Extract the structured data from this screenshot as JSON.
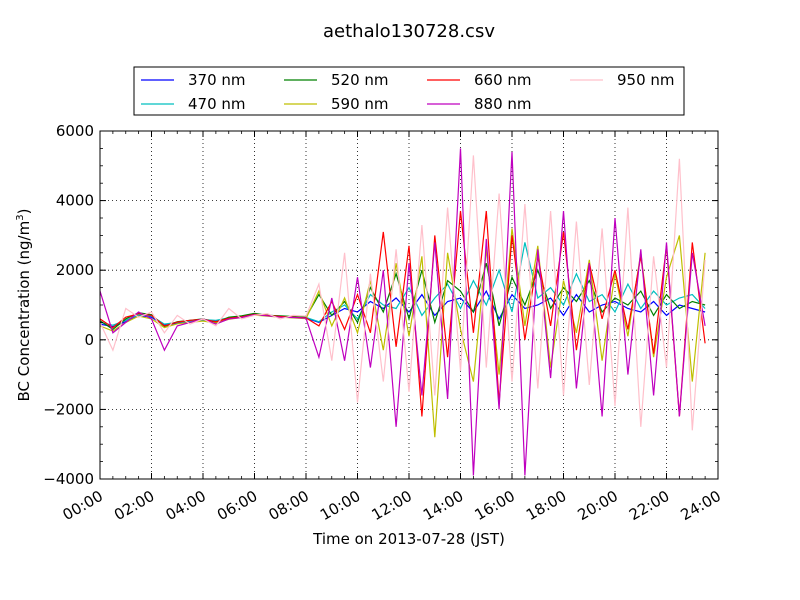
{
  "chart_data": {
    "type": "line",
    "title": "aethalo130728.csv",
    "xlabel": "Time on 2013-07-28 (JST)",
    "ylabel": "BC Concentration (ng/m",
    "ylabel_sup": "3",
    "ylabel_close": ")",
    "xlim": [
      "00:00",
      "24:00"
    ],
    "ylim": [
      -4000,
      6000
    ],
    "xticks": [
      "00:00",
      "02:00",
      "04:00",
      "06:00",
      "08:00",
      "10:00",
      "12:00",
      "14:00",
      "16:00",
      "18:00",
      "20:00",
      "22:00",
      "24:00"
    ],
    "yticks": [
      -4000,
      -2000,
      0,
      2000,
      4000,
      6000
    ],
    "ytick_labels": [
      "−4000",
      "−2000",
      "0",
      "2000",
      "4000",
      "6000"
    ],
    "grid": true,
    "legend_position": "top-center",
    "series": [
      {
        "name": "370 nm",
        "color": "#0000ff",
        "x": [
          "00:00",
          "00:30",
          "01:00",
          "01:30",
          "02:00",
          "02:30",
          "03:00",
          "03:30",
          "04:00",
          "04:30",
          "05:00",
          "05:30",
          "06:00",
          "06:30",
          "07:00",
          "07:30",
          "08:00",
          "08:30",
          "09:00",
          "09:30",
          "10:00",
          "10:30",
          "11:00",
          "11:30",
          "12:00",
          "12:30",
          "13:00",
          "13:30",
          "14:00",
          "14:30",
          "15:00",
          "15:30",
          "16:00",
          "16:30",
          "17:00",
          "17:30",
          "18:00",
          "18:30",
          "19:00",
          "19:30",
          "20:00",
          "20:30",
          "21:00",
          "21:30",
          "22:00",
          "22:30",
          "23:00",
          "23:30"
        ],
        "values": [
          450,
          380,
          520,
          700,
          650,
          420,
          480,
          520,
          560,
          540,
          610,
          650,
          720,
          690,
          660,
          640,
          620,
          500,
          700,
          900,
          800,
          1100,
          900,
          1200,
          800,
          1300,
          700,
          1100,
          1200,
          800,
          1400,
          600,
          1300,
          900,
          1000,
          1200,
          700,
          1300,
          800,
          1000,
          1100,
          900,
          800,
          1100,
          700,
          1000,
          900,
          800
        ]
      },
      {
        "name": "470 nm",
        "color": "#00bfbf",
        "x": [
          "00:00",
          "00:30",
          "01:00",
          "01:30",
          "02:00",
          "02:30",
          "03:00",
          "03:30",
          "04:00",
          "04:30",
          "05:00",
          "05:30",
          "06:00",
          "06:30",
          "07:00",
          "07:30",
          "08:00",
          "08:30",
          "09:00",
          "09:30",
          "10:00",
          "10:30",
          "11:00",
          "11:30",
          "12:00",
          "12:30",
          "13:00",
          "13:30",
          "14:00",
          "14:30",
          "15:00",
          "15:30",
          "16:00",
          "16:30",
          "17:00",
          "17:30",
          "18:00",
          "18:30",
          "19:00",
          "19:30",
          "20:00",
          "20:30",
          "21:00",
          "21:30",
          "22:00",
          "22:30",
          "23:00",
          "23:30"
        ],
        "values": [
          500,
          420,
          560,
          720,
          680,
          450,
          500,
          540,
          580,
          560,
          630,
          670,
          740,
          710,
          680,
          660,
          640,
          520,
          800,
          1000,
          600,
          1300,
          1000,
          900,
          1500,
          700,
          1200,
          1600,
          900,
          1700,
          1000,
          2000,
          800,
          2800,
          1200,
          1500,
          1000,
          1900,
          1100,
          1300,
          800,
          1600,
          900,
          1400,
          1000,
          1200,
          1300,
          900
        ]
      },
      {
        "name": "520 nm",
        "color": "#008000",
        "x": [
          "00:00",
          "00:30",
          "01:00",
          "01:30",
          "02:00",
          "02:30",
          "03:00",
          "03:30",
          "04:00",
          "04:30",
          "05:00",
          "05:30",
          "06:00",
          "06:30",
          "07:00",
          "07:30",
          "08:00",
          "08:30",
          "09:00",
          "09:30",
          "10:00",
          "10:30",
          "11:00",
          "11:30",
          "12:00",
          "12:30",
          "13:00",
          "13:30",
          "14:00",
          "14:30",
          "15:00",
          "15:30",
          "16:00",
          "16:30",
          "17:00",
          "17:30",
          "18:00",
          "18:30",
          "19:00",
          "19:30",
          "20:00",
          "20:30",
          "21:00",
          "21:30",
          "22:00",
          "22:30",
          "23:00",
          "23:30"
        ],
        "values": [
          550,
          300,
          600,
          780,
          720,
          380,
          520,
          560,
          600,
          500,
          650,
          690,
          760,
          700,
          690,
          670,
          650,
          1300,
          700,
          1100,
          500,
          1500,
          800,
          1900,
          600,
          2000,
          500,
          1700,
          1400,
          800,
          2200,
          400,
          1800,
          1000,
          2000,
          900,
          1500,
          1100,
          1700,
          800,
          1200,
          1000,
          1400,
          700,
          1300,
          900,
          1100,
          1000
        ]
      },
      {
        "name": "590 nm",
        "color": "#bfbf00",
        "x": [
          "00:00",
          "00:30",
          "01:00",
          "01:30",
          "02:00",
          "02:30",
          "03:00",
          "03:30",
          "04:00",
          "04:30",
          "05:00",
          "05:30",
          "06:00",
          "06:30",
          "07:00",
          "07:30",
          "08:00",
          "08:30",
          "09:00",
          "09:30",
          "10:00",
          "10:30",
          "11:00",
          "11:30",
          "12:00",
          "12:30",
          "13:00",
          "13:30",
          "14:00",
          "14:30",
          "15:00",
          "15:30",
          "16:00",
          "16:30",
          "17:00",
          "17:30",
          "18:00",
          "18:30",
          "19:00",
          "19:30",
          "20:00",
          "20:30",
          "21:00",
          "21:30",
          "22:00",
          "22:30",
          "23:00",
          "23:30"
        ],
        "values": [
          400,
          250,
          500,
          680,
          600,
          350,
          460,
          500,
          540,
          480,
          590,
          640,
          710,
          680,
          650,
          630,
          610,
          1400,
          400,
          1200,
          200,
          1700,
          -300,
          2200,
          100,
          2400,
          -2800,
          2500,
          300,
          -1200,
          2600,
          -1000,
          3200,
          400,
          2700,
          -800,
          1700,
          200,
          2300,
          -600,
          1900,
          100,
          2500,
          -500,
          1800,
          3000,
          -1200,
          2500
        ]
      },
      {
        "name": "660 nm",
        "color": "#ff0000",
        "x": [
          "00:00",
          "00:30",
          "01:00",
          "01:30",
          "02:00",
          "02:30",
          "03:00",
          "03:30",
          "04:00",
          "04:30",
          "05:00",
          "05:30",
          "06:00",
          "06:30",
          "07:00",
          "07:30",
          "08:00",
          "08:30",
          "09:00",
          "09:30",
          "10:00",
          "10:30",
          "11:00",
          "11:30",
          "12:00",
          "12:30",
          "13:00",
          "13:30",
          "14:00",
          "14:30",
          "15:00",
          "15:30",
          "16:00",
          "16:30",
          "17:00",
          "17:30",
          "18:00",
          "18:30",
          "19:00",
          "19:30",
          "20:00",
          "20:30",
          "21:00",
          "21:30",
          "22:00",
          "22:30",
          "23:00",
          "23:30"
        ],
        "values": [
          600,
          350,
          650,
          750,
          700,
          400,
          510,
          560,
          590,
          520,
          620,
          660,
          730,
          700,
          670,
          650,
          630,
          400,
          1100,
          300,
          1300,
          200,
          3100,
          -200,
          2700,
          -2200,
          3000,
          -500,
          3700,
          200,
          3700,
          -1800,
          3000,
          0,
          2400,
          400,
          3100,
          -300,
          2200,
          600,
          2000,
          300,
          2400,
          -400,
          2700,
          -2200,
          2800,
          -100
        ]
      },
      {
        "name": "880 nm",
        "color": "#bf00bf",
        "x": [
          "00:00",
          "00:30",
          "01:00",
          "01:30",
          "02:00",
          "02:30",
          "03:00",
          "03:30",
          "04:00",
          "04:30",
          "05:00",
          "05:30",
          "06:00",
          "06:30",
          "07:00",
          "07:30",
          "08:00",
          "08:30",
          "09:00",
          "09:30",
          "10:00",
          "10:30",
          "11:00",
          "11:30",
          "12:00",
          "12:30",
          "13:00",
          "13:30",
          "14:00",
          "14:30",
          "15:00",
          "15:30",
          "16:00",
          "16:30",
          "17:00",
          "17:30",
          "18:00",
          "18:30",
          "19:00",
          "19:30",
          "20:00",
          "20:30",
          "21:00",
          "21:30",
          "22:00",
          "22:30",
          "23:00",
          "23:30"
        ],
        "values": [
          1400,
          200,
          500,
          800,
          600,
          -300,
          400,
          500,
          600,
          450,
          600,
          640,
          720,
          690,
          650,
          640,
          620,
          -500,
          1200,
          -600,
          1800,
          -800,
          2000,
          -2500,
          2200,
          -1600,
          2800,
          -1700,
          5500,
          -3900,
          2900,
          -2000,
          5400,
          -3900,
          2600,
          -1100,
          3700,
          -1400,
          2200,
          -2200,
          3500,
          -1000,
          2600,
          -1600,
          2800,
          -2200,
          2500,
          400
        ]
      },
      {
        "name": "950 nm",
        "color": "#ffc0cb",
        "x": [
          "00:00",
          "00:30",
          "01:00",
          "01:30",
          "02:00",
          "02:30",
          "03:00",
          "03:30",
          "04:00",
          "04:30",
          "05:00",
          "05:30",
          "06:00",
          "06:30",
          "07:00",
          "07:30",
          "08:00",
          "08:30",
          "09:00",
          "09:30",
          "10:00",
          "10:30",
          "11:00",
          "11:30",
          "12:00",
          "12:30",
          "13:00",
          "13:30",
          "14:00",
          "14:30",
          "15:00",
          "15:30",
          "16:00",
          "16:30",
          "17:00",
          "17:30",
          "18:00",
          "18:30",
          "19:00",
          "19:30",
          "20:00",
          "20:30",
          "21:00",
          "21:30",
          "22:00",
          "22:30",
          "23:00",
          "23:30"
        ],
        "values": [
          500,
          -300,
          900,
          650,
          800,
          200,
          700,
          450,
          600,
          400,
          900,
          600,
          700,
          750,
          600,
          700,
          680,
          1600,
          -600,
          2500,
          -1800,
          1900,
          -1200,
          2600,
          -1500,
          3300,
          -1600,
          3800,
          -900,
          5300,
          -800,
          4200,
          -1200,
          3900,
          -1400,
          3700,
          -1600,
          3400,
          -1300,
          3200,
          -1900,
          3800,
          -2500,
          2400,
          -800,
          5200,
          -2600,
          2300
        ]
      }
    ]
  }
}
